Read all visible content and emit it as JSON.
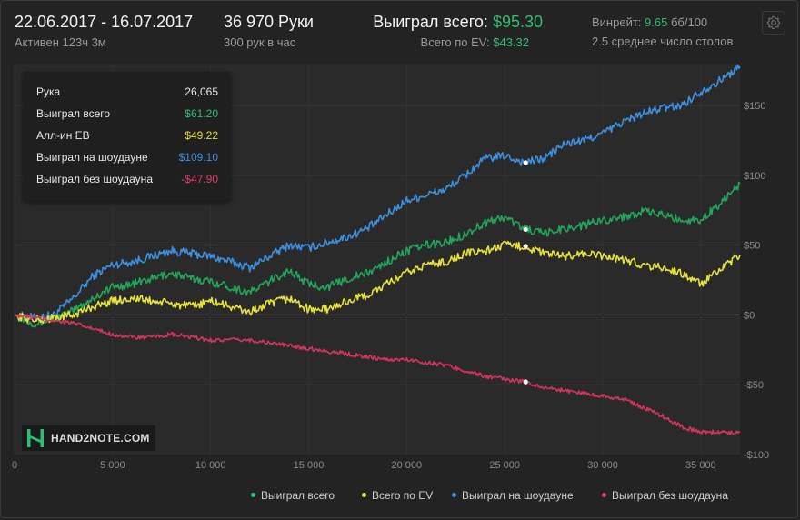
{
  "header": {
    "date_range": "22.06.2017 - 16.07.2017",
    "active_time": "Активен 123ч 3м",
    "hands": "36 970 Руки",
    "hands_per_hour": "300 рук в час",
    "won_total_label": "Выиграл всего:",
    "won_total_value": "$95.30",
    "ev_total_label": "Всего по EV:",
    "ev_total_value": "$43.32",
    "winrate_label": "Винрейт:",
    "winrate_value": "9.65",
    "winrate_unit": "бб/100",
    "avg_tables": "2.5 среднее число столов",
    "settings_icon": "gear-icon"
  },
  "tooltip": {
    "rows": [
      {
        "label": "Рука",
        "value": "26,065",
        "color": "#e8e8e8"
      },
      {
        "label": "Выиграл всего",
        "value": "$61.20",
        "color": "#2fbf71"
      },
      {
        "label": "Алл-ин ЕВ",
        "value": "$49.22",
        "color": "#e6e23a"
      },
      {
        "label": "Выиграл на шоудауне",
        "value": "$109.10",
        "color": "#3d8fe0"
      },
      {
        "label": "Выиграл без шоудауна",
        "value": "-$47.90",
        "color": "#e0406a"
      }
    ]
  },
  "logo": {
    "text": "HAND2NOTE.COM",
    "icon": "h2n-logo-icon"
  },
  "chart_data": {
    "type": "line",
    "xlabel": "",
    "ylabel": "",
    "xlim": [
      0,
      37000
    ],
    "ylim": [
      -100,
      180
    ],
    "x_ticks": [
      {
        "value": 0,
        "label": "0"
      },
      {
        "value": 5000,
        "label": "5 000"
      },
      {
        "value": 10000,
        "label": "10 000"
      },
      {
        "value": 15000,
        "label": "15 000"
      },
      {
        "value": 20000,
        "label": "20 000"
      },
      {
        "value": 25000,
        "label": "25 000"
      },
      {
        "value": 30000,
        "label": "30 000"
      },
      {
        "value": 35000,
        "label": "35 000"
      }
    ],
    "y_ticks": [
      {
        "value": 150,
        "label": "$150"
      },
      {
        "value": 100,
        "label": "$100"
      },
      {
        "value": 50,
        "label": "$50"
      },
      {
        "value": 0,
        "label": "$0"
      },
      {
        "value": -50,
        "label": "-$50"
      },
      {
        "value": -100,
        "label": "-$100"
      }
    ],
    "grid": true,
    "legend_position": "bottom-right",
    "hover_x": 26065,
    "series": [
      {
        "name": "Выиграл на шоудауне",
        "color": "#3d8fe0",
        "points": [
          [
            0,
            0
          ],
          [
            1000,
            -2
          ],
          [
            2000,
            0
          ],
          [
            3000,
            12
          ],
          [
            4000,
            28
          ],
          [
            5000,
            36
          ],
          [
            6000,
            38
          ],
          [
            7000,
            42
          ],
          [
            8000,
            46
          ],
          [
            9000,
            44
          ],
          [
            10000,
            42
          ],
          [
            11000,
            38
          ],
          [
            12000,
            34
          ],
          [
            13000,
            42
          ],
          [
            14000,
            50
          ],
          [
            15000,
            48
          ],
          [
            16000,
            52
          ],
          [
            17000,
            56
          ],
          [
            18000,
            62
          ],
          [
            19000,
            72
          ],
          [
            20000,
            82
          ],
          [
            21000,
            86
          ],
          [
            22000,
            90
          ],
          [
            23000,
            100
          ],
          [
            24000,
            112
          ],
          [
            25000,
            114
          ],
          [
            26000,
            109
          ],
          [
            27000,
            112
          ],
          [
            28000,
            122
          ],
          [
            29000,
            125
          ],
          [
            30000,
            130
          ],
          [
            31000,
            138
          ],
          [
            32000,
            144
          ],
          [
            33000,
            148
          ],
          [
            34000,
            150
          ],
          [
            35000,
            160
          ],
          [
            36000,
            168
          ],
          [
            37000,
            178
          ]
        ]
      },
      {
        "name": "Выиграл всего",
        "color": "#22a65a",
        "points": [
          [
            0,
            0
          ],
          [
            1000,
            -6
          ],
          [
            2000,
            -3
          ],
          [
            3000,
            3
          ],
          [
            4000,
            12
          ],
          [
            5000,
            20
          ],
          [
            6000,
            22
          ],
          [
            7000,
            26
          ],
          [
            8000,
            30
          ],
          [
            9000,
            26
          ],
          [
            10000,
            24
          ],
          [
            11000,
            20
          ],
          [
            12000,
            16
          ],
          [
            13000,
            24
          ],
          [
            14000,
            32
          ],
          [
            15000,
            22
          ],
          [
            16000,
            20
          ],
          [
            17000,
            26
          ],
          [
            18000,
            30
          ],
          [
            19000,
            38
          ],
          [
            20000,
            46
          ],
          [
            21000,
            50
          ],
          [
            22000,
            52
          ],
          [
            23000,
            58
          ],
          [
            24000,
            66
          ],
          [
            25000,
            70
          ],
          [
            26000,
            62
          ],
          [
            27000,
            58
          ],
          [
            28000,
            62
          ],
          [
            29000,
            64
          ],
          [
            30000,
            68
          ],
          [
            31000,
            70
          ],
          [
            32000,
            74
          ],
          [
            33000,
            72
          ],
          [
            34000,
            68
          ],
          [
            35000,
            68
          ],
          [
            36000,
            80
          ],
          [
            37000,
            94
          ]
        ]
      },
      {
        "name": "Всего по EV",
        "color": "#e6e23a",
        "points": [
          [
            0,
            0
          ],
          [
            1000,
            -4
          ],
          [
            2000,
            -2
          ],
          [
            3000,
            0
          ],
          [
            4000,
            6
          ],
          [
            5000,
            10
          ],
          [
            6000,
            12
          ],
          [
            7000,
            10
          ],
          [
            8000,
            8
          ],
          [
            9000,
            6
          ],
          [
            10000,
            10
          ],
          [
            11000,
            6
          ],
          [
            12000,
            2
          ],
          [
            13000,
            8
          ],
          [
            14000,
            12
          ],
          [
            15000,
            4
          ],
          [
            16000,
            4
          ],
          [
            17000,
            10
          ],
          [
            18000,
            14
          ],
          [
            19000,
            22
          ],
          [
            20000,
            30
          ],
          [
            21000,
            36
          ],
          [
            22000,
            38
          ],
          [
            23000,
            44
          ],
          [
            24000,
            46
          ],
          [
            25000,
            50
          ],
          [
            26000,
            49
          ],
          [
            27000,
            44
          ],
          [
            28000,
            42
          ],
          [
            29000,
            44
          ],
          [
            30000,
            42
          ],
          [
            31000,
            40
          ],
          [
            32000,
            36
          ],
          [
            33000,
            34
          ],
          [
            34000,
            30
          ],
          [
            35000,
            22
          ],
          [
            36000,
            32
          ],
          [
            37000,
            43
          ]
        ]
      },
      {
        "name": "Выиграл без шоудауна",
        "color": "#d6345e",
        "points": [
          [
            0,
            0
          ],
          [
            1000,
            -2
          ],
          [
            2000,
            -4
          ],
          [
            3000,
            -6
          ],
          [
            4000,
            -10
          ],
          [
            5000,
            -14
          ],
          [
            6000,
            -16
          ],
          [
            7000,
            -16
          ],
          [
            8000,
            -14
          ],
          [
            9000,
            -16
          ],
          [
            10000,
            -18
          ],
          [
            11000,
            -18
          ],
          [
            12000,
            -18
          ],
          [
            13000,
            -20
          ],
          [
            14000,
            -22
          ],
          [
            15000,
            -24
          ],
          [
            16000,
            -26
          ],
          [
            17000,
            -28
          ],
          [
            18000,
            -30
          ],
          [
            19000,
            -32
          ],
          [
            20000,
            -32
          ],
          [
            21000,
            -34
          ],
          [
            22000,
            -36
          ],
          [
            23000,
            -40
          ],
          [
            24000,
            -44
          ],
          [
            25000,
            -46
          ],
          [
            26000,
            -48
          ],
          [
            27000,
            -52
          ],
          [
            28000,
            -54
          ],
          [
            29000,
            -56
          ],
          [
            30000,
            -58
          ],
          [
            31000,
            -60
          ],
          [
            32000,
            -66
          ],
          [
            33000,
            -72
          ],
          [
            34000,
            -80
          ],
          [
            35000,
            -84
          ],
          [
            36000,
            -84
          ],
          [
            37000,
            -84
          ]
        ]
      }
    ]
  },
  "legend": {
    "items": [
      {
        "label": "Выиграл всего",
        "color": "#2fbf71"
      },
      {
        "label": "Всего по EV",
        "color": "#e6e23a"
      },
      {
        "label": "Выиграл на шоудауне",
        "color": "#3d8fe0"
      },
      {
        "label": "Выиграл без шоудауна",
        "color": "#e0406a"
      }
    ]
  }
}
